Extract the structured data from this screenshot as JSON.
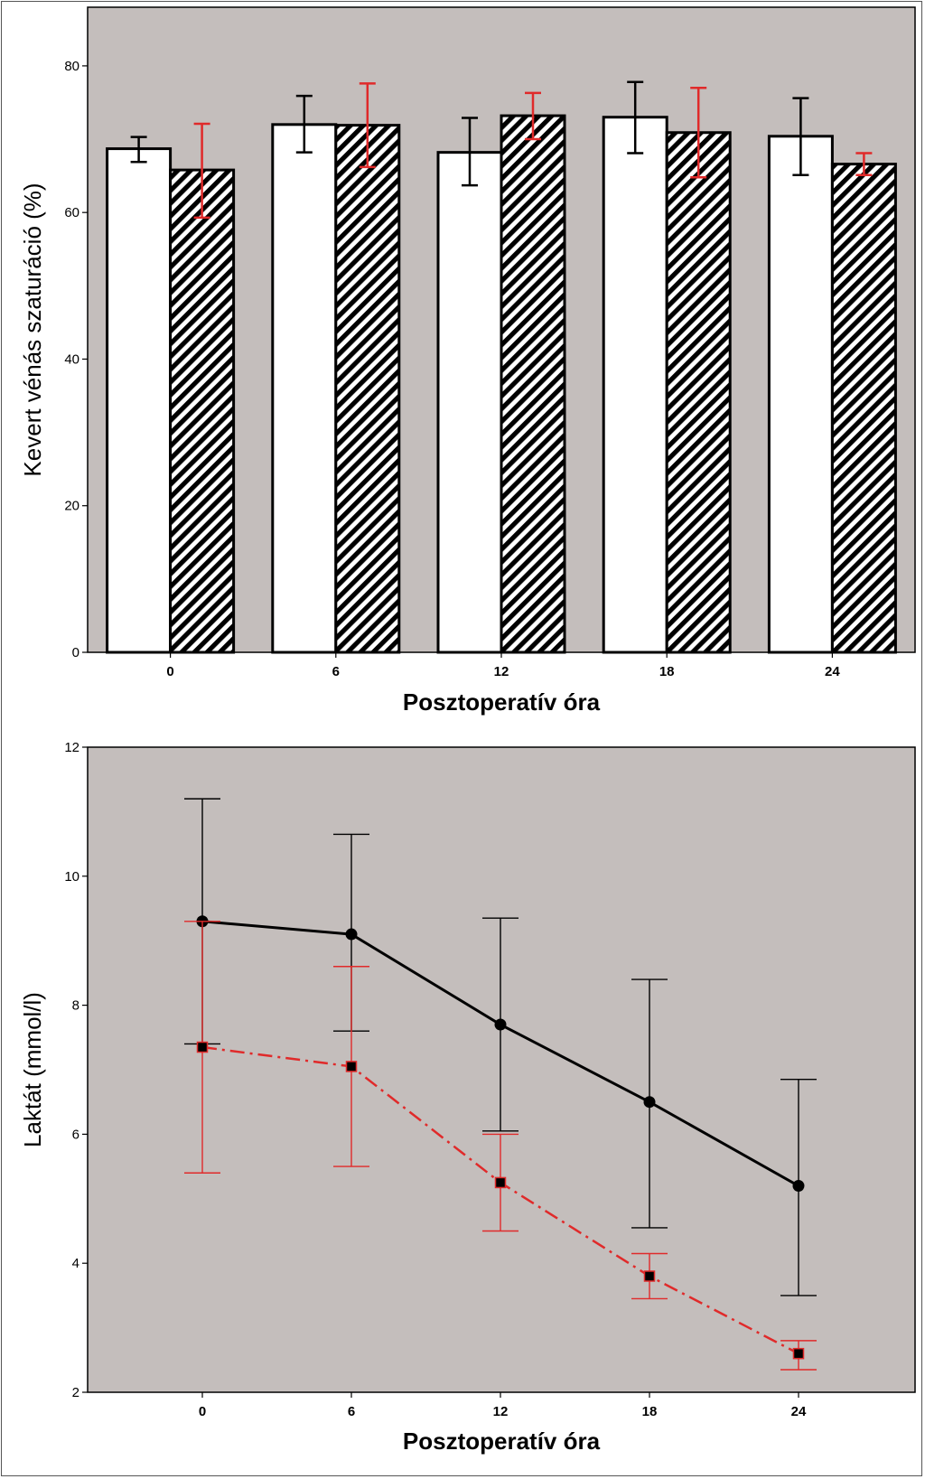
{
  "colors": {
    "plot_bg": "#c4bebc",
    "black": "#000000",
    "red": "#e02a2a",
    "white": "#ffffff"
  },
  "chart_data": [
    {
      "type": "bar",
      "ylabel": "Kevert vénás szaturáció (%)",
      "xlabel": "Posztoperatív óra",
      "categories": [
        "0",
        "6",
        "12",
        "18",
        "24"
      ],
      "ylim": [
        0,
        88
      ],
      "yticks": [
        "0",
        "20",
        "40",
        "60",
        "80"
      ],
      "ytick_values": [
        0,
        20,
        40,
        60,
        80
      ],
      "series": [
        {
          "style": "white",
          "values": [
            68.7,
            72.0,
            68.2,
            73.0,
            70.4
          ],
          "err_low": [
            66.9,
            68.2,
            63.7,
            68.1,
            65.1
          ],
          "err_high": [
            70.3,
            75.9,
            72.9,
            77.8,
            75.6
          ],
          "err_color": "black"
        },
        {
          "style": "hatched",
          "values": [
            65.8,
            71.9,
            73.2,
            70.9,
            66.6
          ],
          "err_low": [
            59.3,
            66.2,
            70.0,
            64.8,
            65.1
          ],
          "err_high": [
            72.1,
            77.6,
            76.3,
            77.0,
            68.1
          ],
          "err_color": "red"
        }
      ]
    },
    {
      "type": "line",
      "ylabel": "Laktát (mmol/l)",
      "xlabel": "Posztoperatív óra",
      "x": [
        "0",
        "6",
        "12",
        "18",
        "24"
      ],
      "ylim": [
        2,
        12
      ],
      "yticks": [
        "2",
        "4",
        "6",
        "8",
        "10",
        "12"
      ],
      "ytick_values": [
        2,
        4,
        6,
        8,
        10,
        12
      ],
      "series": [
        {
          "style": "black-solid-circle",
          "values": [
            9.3,
            9.1,
            7.7,
            6.5,
            5.2
          ],
          "err_low": [
            7.4,
            7.6,
            6.05,
            4.55,
            3.5
          ],
          "err_high": [
            11.2,
            10.65,
            9.35,
            8.4,
            6.85
          ]
        },
        {
          "style": "red-dashdot-square",
          "values": [
            7.35,
            7.05,
            5.25,
            3.8,
            2.6
          ],
          "err_low": [
            5.4,
            5.5,
            4.5,
            3.45,
            2.35
          ],
          "err_high": [
            9.3,
            8.6,
            6.0,
            4.15,
            2.8
          ]
        }
      ]
    }
  ]
}
